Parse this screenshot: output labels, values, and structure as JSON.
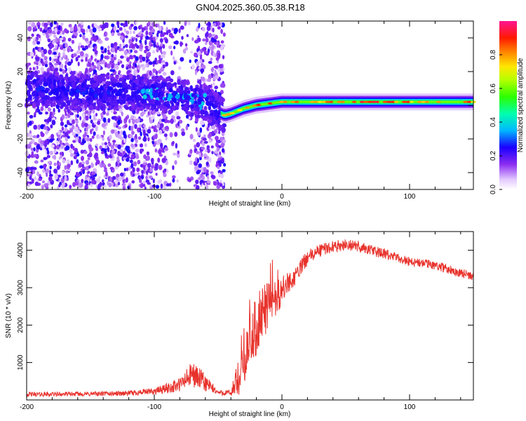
{
  "title": "GN04.2025.360.05.38.R18",
  "chart_data": [
    {
      "type": "heatmap",
      "xlabel": "Height of straight line (km)",
      "ylabel": "Frequency (Hz)",
      "xlim": [
        -200,
        150
      ],
      "ylim": [
        -50,
        50
      ],
      "x_ticks": [
        -200,
        -100,
        0,
        100
      ],
      "x_tick_labels": [
        "-200",
        "-100",
        "0",
        "100"
      ],
      "y_ticks": [
        -40,
        -20,
        0,
        20,
        40
      ],
      "y_tick_labels": [
        "-40",
        "-20",
        "0",
        "20",
        "40"
      ],
      "colorbar": {
        "label": "Normalized spectral amplitude",
        "range": [
          0,
          1
        ],
        "ticks": [
          0.0,
          0.2,
          0.4,
          0.6,
          0.8
        ],
        "tick_labels": [
          "0.0",
          "0.2",
          "0.4",
          "0.6",
          "0.8"
        ]
      },
      "ridge": {
        "x": [
          -200,
          -180,
          -160,
          -140,
          -120,
          -100,
          -80,
          -60,
          -50,
          -45,
          -40,
          -30,
          -20,
          -10,
          0,
          20,
          60,
          100,
          150
        ],
        "freq": [
          10,
          9,
          8,
          7,
          8,
          7,
          5,
          2,
          -4,
          -6,
          -5,
          -2,
          0,
          1,
          2,
          2,
          2,
          2,
          2
        ]
      }
    },
    {
      "type": "line",
      "xlabel": "Height of straight line (km)",
      "ylabel": "SNR (10 * v/v)",
      "xlim": [
        -200,
        150
      ],
      "ylim": [
        0,
        4500
      ],
      "x_ticks": [
        -200,
        -100,
        0,
        100
      ],
      "x_tick_labels": [
        "-200",
        "-100",
        "0",
        "100"
      ],
      "y_ticks": [
        1000,
        2000,
        3000,
        4000
      ],
      "y_tick_labels": [
        "1000",
        "2000",
        "3000",
        "4000"
      ],
      "color": "#e8322c",
      "envelope": {
        "x": [
          -200,
          -150,
          -120,
          -100,
          -80,
          -70,
          -60,
          -50,
          -40,
          -35,
          -30,
          -25,
          -20,
          -15,
          -10,
          0,
          10,
          20,
          30,
          40,
          50,
          60,
          70,
          80,
          90,
          100,
          110,
          120,
          130,
          140,
          150
        ],
        "y": [
          150,
          160,
          180,
          230,
          400,
          700,
          450,
          200,
          180,
          500,
          1000,
          1600,
          2000,
          2300,
          2600,
          2900,
          3300,
          3800,
          4000,
          4100,
          4150,
          4100,
          4000,
          3900,
          3800,
          3700,
          3650,
          3600,
          3500,
          3400,
          3300
        ]
      },
      "noise": [
        60,
        60,
        70,
        90,
        200,
        350,
        250,
        60,
        100,
        500,
        600,
        700,
        800,
        800,
        600,
        400,
        250,
        200,
        180,
        150,
        150,
        150,
        150,
        140,
        130,
        130,
        130,
        120,
        120,
        120,
        120
      ]
    }
  ]
}
